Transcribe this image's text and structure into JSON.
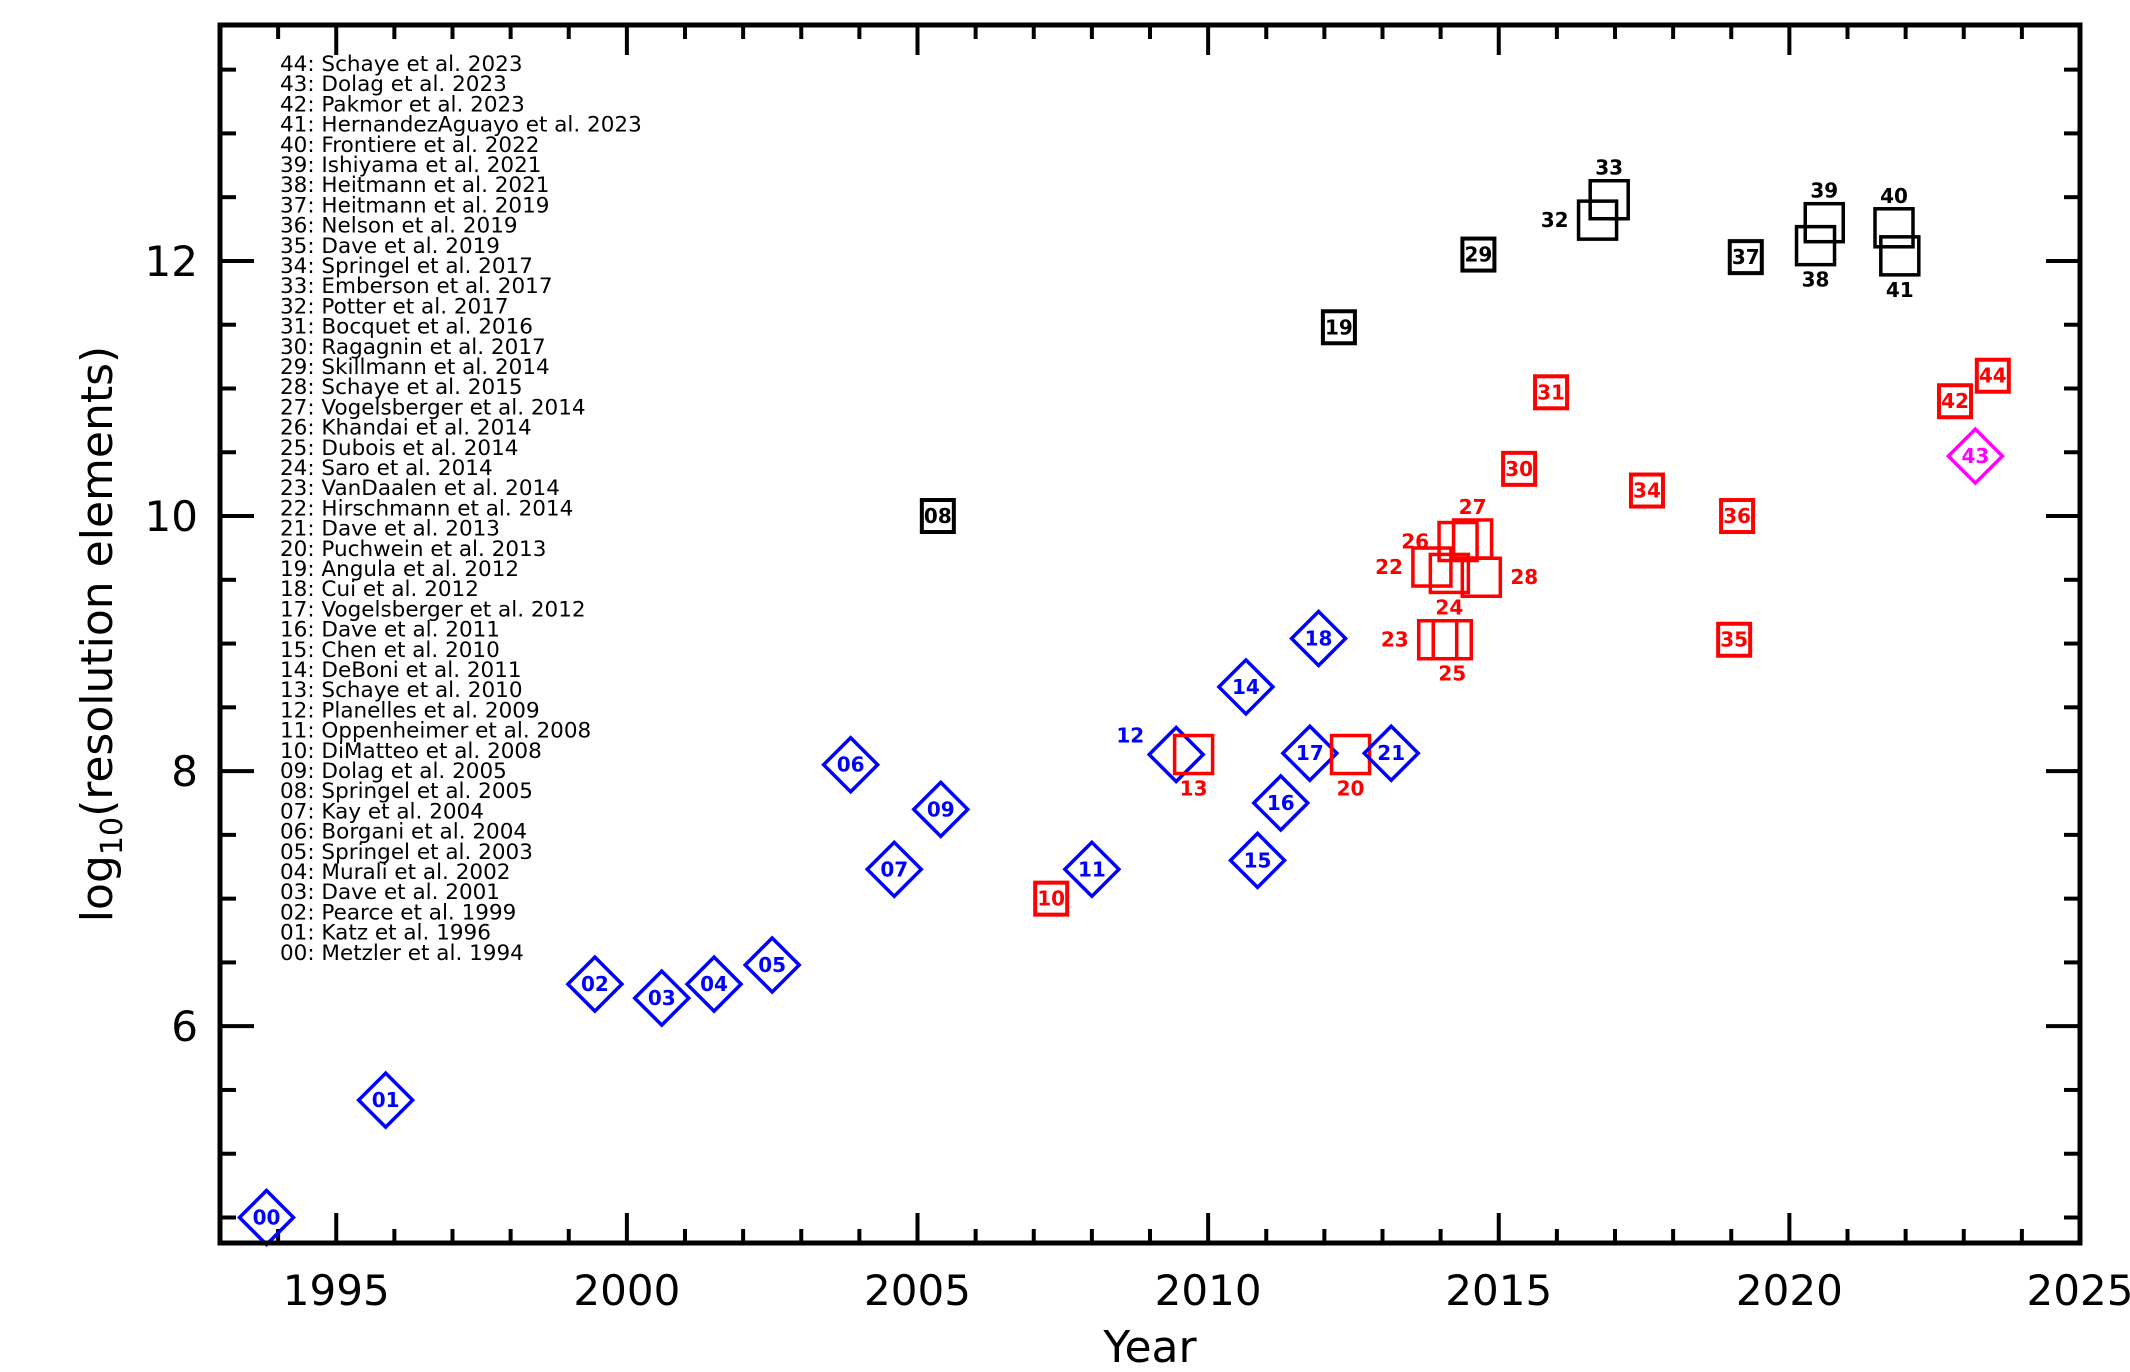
{
  "chart_data": {
    "type": "scatter",
    "xlabel": "Year",
    "ylabel_prefix": "log",
    "ylabel_sub": "10",
    "ylabel_rest": "(resolution elements)",
    "xlim": [
      1993,
      2025
    ],
    "ylim": [
      4.3,
      13.85
    ],
    "xticks": [
      1995,
      2000,
      2005,
      2010,
      2015,
      2020,
      2025
    ],
    "yticks": [
      6,
      8,
      10,
      12
    ],
    "colors": {
      "blue": "#0000ff",
      "red": "#ff0000",
      "black": "#000000",
      "magenta": "#ff00ff"
    },
    "legend": [
      "44: Schaye et al. 2023",
      "43: Dolag et al. 2023",
      "42: Pakmor et al. 2023",
      "41: HernandezAguayo et al. 2023",
      "40: Frontiere et al. 2022",
      "39: Ishiyama et al. 2021",
      "38: Heitmann et al. 2021",
      "37: Heitmann et al. 2019",
      "36: Nelson et al. 2019",
      "35: Dave et al. 2019",
      "34: Springel et al. 2017",
      "33: Emberson et al. 2017",
      "32: Potter et al. 2017",
      "31: Bocquet et al. 2016",
      "30: Ragagnin et al. 2017",
      "29: Skillmann et al. 2014",
      "28: Schaye et al. 2015",
      "27: Vogelsberger et al. 2014",
      "26: Khandai et al. 2014",
      "25: Dubois et al. 2014",
      "24: Saro et al. 2014",
      "23: VanDaalen et al. 2014",
      "22: Hirschmann et al. 2014",
      "21: Dave et al. 2013",
      "20: Puchwein et al. 2013",
      "19: Angula et al. 2012",
      "18: Cui et al. 2012",
      "17: Vogelsberger et al. 2012",
      "16: Dave et al. 2011",
      "15: Chen et al. 2010",
      "14: DeBoni et al. 2011",
      "13: Schaye et al. 2010",
      "12: Planelles et al. 2009",
      "11: Oppenheimer et al. 2008",
      "10: DiMatteo et al. 2008",
      "09: Dolag et al. 2005",
      "08: Springel et al. 2005",
      "07: Kay et al. 2004",
      "06: Borgani et al. 2004",
      "05: Springel et al. 2003",
      "04: Murali et al. 2002",
      "03: Dave et al. 2001",
      "02: Pearce et al. 1999",
      "01: Katz et al. 1996",
      "00: Metzler et al. 1994"
    ],
    "points": [
      {
        "id": "00",
        "x": 1993.8,
        "y": 4.5,
        "shape": "diamond",
        "color": "blue",
        "label": "inside"
      },
      {
        "id": "01",
        "x": 1995.85,
        "y": 5.42,
        "shape": "diamond",
        "color": "blue",
        "label": "inside"
      },
      {
        "id": "02",
        "x": 1999.45,
        "y": 6.33,
        "shape": "diamond",
        "color": "blue",
        "label": "inside"
      },
      {
        "id": "03",
        "x": 2000.6,
        "y": 6.22,
        "shape": "diamond",
        "color": "blue",
        "label": "inside"
      },
      {
        "id": "04",
        "x": 2001.5,
        "y": 6.33,
        "shape": "diamond",
        "color": "blue",
        "label": "inside"
      },
      {
        "id": "05",
        "x": 2002.5,
        "y": 6.48,
        "shape": "diamond",
        "color": "blue",
        "label": "inside"
      },
      {
        "id": "06",
        "x": 2003.85,
        "y": 8.05,
        "shape": "diamond",
        "color": "blue",
        "label": "inside"
      },
      {
        "id": "07",
        "x": 2004.6,
        "y": 7.23,
        "shape": "diamond",
        "color": "blue",
        "label": "inside"
      },
      {
        "id": "08",
        "x": 2005.35,
        "y": 10.0,
        "shape": "square-filled",
        "color": "black",
        "label": "inside"
      },
      {
        "id": "09",
        "x": 2005.4,
        "y": 7.7,
        "shape": "diamond",
        "color": "blue",
        "label": "inside"
      },
      {
        "id": "10",
        "x": 2007.3,
        "y": 7.0,
        "shape": "square-filled",
        "color": "red",
        "label": "inside"
      },
      {
        "id": "11",
        "x": 2008.0,
        "y": 7.23,
        "shape": "diamond",
        "color": "blue",
        "label": "inside"
      },
      {
        "id": "12",
        "x": 2009.45,
        "y": 8.13,
        "shape": "diamond",
        "color": "blue",
        "label": "left"
      },
      {
        "id": "13",
        "x": 2009.75,
        "y": 8.13,
        "shape": "square",
        "color": "red",
        "label": "below"
      },
      {
        "id": "14",
        "x": 2010.65,
        "y": 8.66,
        "shape": "diamond",
        "color": "blue",
        "label": "inside"
      },
      {
        "id": "15",
        "x": 2010.85,
        "y": 7.3,
        "shape": "diamond",
        "color": "blue",
        "label": "inside"
      },
      {
        "id": "16",
        "x": 2011.25,
        "y": 7.75,
        "shape": "diamond",
        "color": "blue",
        "label": "inside"
      },
      {
        "id": "17",
        "x": 2011.75,
        "y": 8.14,
        "shape": "diamond",
        "color": "blue",
        "label": "inside"
      },
      {
        "id": "18",
        "x": 2011.9,
        "y": 9.04,
        "shape": "diamond",
        "color": "blue",
        "label": "inside"
      },
      {
        "id": "19",
        "x": 2012.25,
        "y": 11.48,
        "shape": "square-filled",
        "color": "black",
        "label": "inside"
      },
      {
        "id": "20",
        "x": 2012.45,
        "y": 8.13,
        "shape": "square",
        "color": "red",
        "label": "below"
      },
      {
        "id": "21",
        "x": 2013.15,
        "y": 8.14,
        "shape": "diamond",
        "color": "blue",
        "label": "inside"
      },
      {
        "id": "22",
        "x": 2013.85,
        "y": 9.6,
        "shape": "square",
        "color": "red",
        "label": "left"
      },
      {
        "id": "23",
        "x": 2013.95,
        "y": 9.03,
        "shape": "square",
        "color": "red",
        "label": "left"
      },
      {
        "id": "24",
        "x": 2014.15,
        "y": 9.55,
        "shape": "square",
        "color": "red",
        "label": "below"
      },
      {
        "id": "25",
        "x": 2014.2,
        "y": 9.03,
        "shape": "square",
        "color": "red",
        "label": "below"
      },
      {
        "id": "26",
        "x": 2014.3,
        "y": 9.8,
        "shape": "square",
        "color": "red",
        "label": "left"
      },
      {
        "id": "27",
        "x": 2014.55,
        "y": 9.82,
        "shape": "square",
        "color": "red",
        "label": "above"
      },
      {
        "id": "28",
        "x": 2014.7,
        "y": 9.52,
        "shape": "square",
        "color": "red",
        "label": "right"
      },
      {
        "id": "29",
        "x": 2014.65,
        "y": 12.05,
        "shape": "square-filled",
        "color": "black",
        "label": "inside"
      },
      {
        "id": "30",
        "x": 2015.35,
        "y": 10.37,
        "shape": "square-filled",
        "color": "red",
        "label": "inside"
      },
      {
        "id": "31",
        "x": 2015.9,
        "y": 10.97,
        "shape": "square-filled",
        "color": "red",
        "label": "inside"
      },
      {
        "id": "32",
        "x": 2016.7,
        "y": 12.32,
        "shape": "square",
        "color": "black",
        "label": "left"
      },
      {
        "id": "33",
        "x": 2016.9,
        "y": 12.48,
        "shape": "square",
        "color": "black",
        "label": "above"
      },
      {
        "id": "34",
        "x": 2017.55,
        "y": 10.2,
        "shape": "square-filled",
        "color": "red",
        "label": "inside"
      },
      {
        "id": "35",
        "x": 2019.05,
        "y": 9.03,
        "shape": "square-filled",
        "color": "red",
        "label": "inside"
      },
      {
        "id": "36",
        "x": 2019.1,
        "y": 10.0,
        "shape": "square-filled",
        "color": "red",
        "label": "inside"
      },
      {
        "id": "37",
        "x": 2019.25,
        "y": 12.03,
        "shape": "square-filled",
        "color": "black",
        "label": "inside"
      },
      {
        "id": "38",
        "x": 2020.45,
        "y": 12.12,
        "shape": "square",
        "color": "black",
        "label": "below"
      },
      {
        "id": "39",
        "x": 2020.6,
        "y": 12.3,
        "shape": "square",
        "color": "black",
        "label": "above"
      },
      {
        "id": "40",
        "x": 2021.8,
        "y": 12.26,
        "shape": "square",
        "color": "black",
        "label": "above"
      },
      {
        "id": "41",
        "x": 2021.9,
        "y": 12.04,
        "shape": "square",
        "color": "black",
        "label": "below"
      },
      {
        "id": "42",
        "x": 2022.85,
        "y": 10.9,
        "shape": "square-filled",
        "color": "red",
        "label": "inside"
      },
      {
        "id": "43",
        "x": 2023.2,
        "y": 10.47,
        "shape": "diamond",
        "color": "magenta",
        "label": "inside"
      },
      {
        "id": "44",
        "x": 2023.5,
        "y": 11.1,
        "shape": "square-filled",
        "color": "red",
        "label": "inside"
      }
    ]
  }
}
